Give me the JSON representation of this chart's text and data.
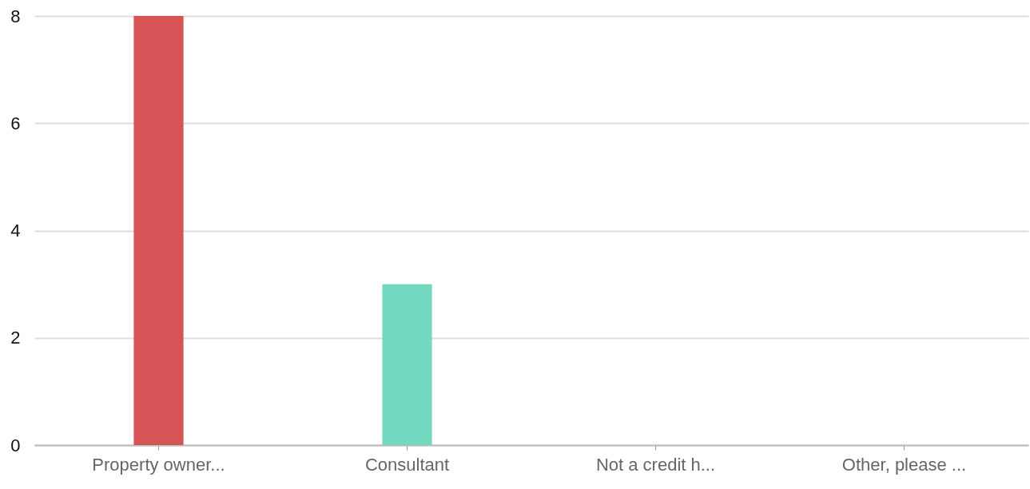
{
  "chart_data": {
    "type": "bar",
    "categories": [
      "Property owner...",
      "Consultant",
      "Not a credit h...",
      "Other, please ..."
    ],
    "values": [
      8,
      3,
      0,
      0
    ],
    "colors": [
      "#d44a4d",
      "#6ad6bc",
      "#f2b134",
      "#4a90d9"
    ],
    "ylim": [
      0,
      8
    ],
    "yticks": [
      0,
      2,
      4,
      6,
      8
    ],
    "grid": "y"
  }
}
